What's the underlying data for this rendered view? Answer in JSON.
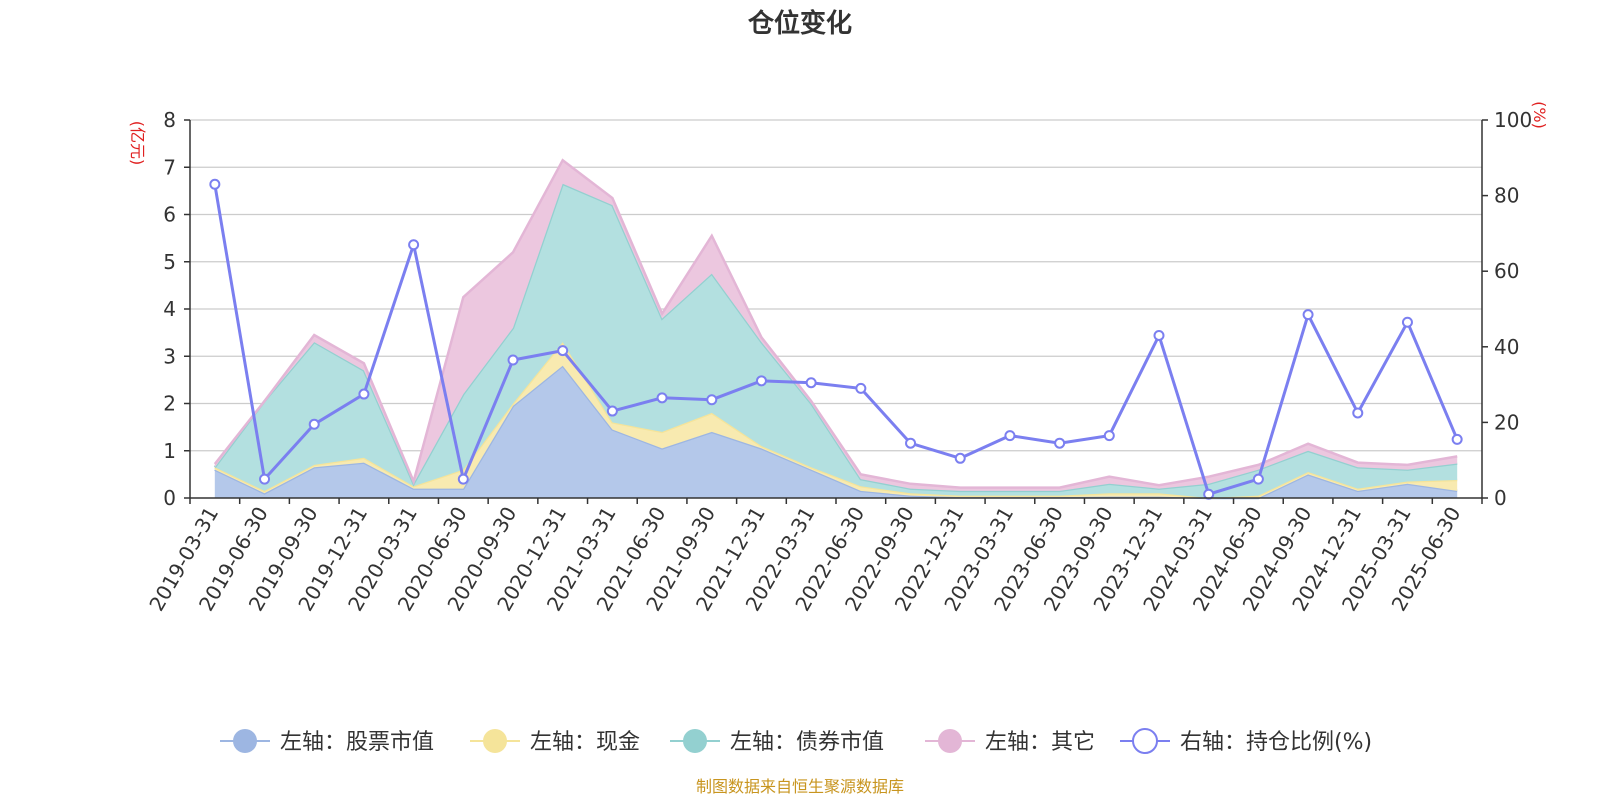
{
  "title": "仓位变化",
  "source": "制图数据来自恒生聚源数据库",
  "chart_data": {
    "type": "area",
    "categories": [
      "2019-03-31",
      "2019-06-30",
      "2019-09-30",
      "2019-12-31",
      "2020-03-31",
      "2020-06-30",
      "2020-09-30",
      "2020-12-31",
      "2021-03-31",
      "2021-06-30",
      "2021-09-30",
      "2021-12-31",
      "2022-03-31",
      "2022-06-30",
      "2022-09-30",
      "2022-12-31",
      "2023-03-31",
      "2023-06-30",
      "2023-09-30",
      "2023-12-31",
      "2024-03-31",
      "2024-06-30",
      "2024-09-30",
      "2024-12-31",
      "2025-03-31",
      "2025-06-30"
    ],
    "y_left": {
      "label": "(亿元)",
      "ylim": [
        0,
        8
      ],
      "ticks": [
        0,
        1,
        2,
        3,
        4,
        5,
        6,
        7,
        8
      ]
    },
    "y_right": {
      "label": "(%)",
      "ylim": [
        0,
        100
      ],
      "ticks": [
        0,
        20,
        40,
        60,
        80,
        100
      ]
    },
    "grid": true,
    "legend_position": "bottom",
    "series": [
      {
        "name": "左轴：股票市值",
        "axis": "left",
        "kind": "stacked-area",
        "color": "#9db6e2",
        "fill": "#b4c8ea",
        "values": [
          0.6,
          0.1,
          0.65,
          0.75,
          0.2,
          0.2,
          1.95,
          2.8,
          1.45,
          1.05,
          1.4,
          1.05,
          0.6,
          0.15,
          0.05,
          0.02,
          0.02,
          0.02,
          0.03,
          0.03,
          0.0,
          0.0,
          0.5,
          0.15,
          0.3,
          0.15
        ]
      },
      {
        "name": "左轴：现金",
        "axis": "left",
        "kind": "stacked-area",
        "color": "#f5e49a",
        "fill": "#f8eab0",
        "values": [
          0.05,
          0.05,
          0.05,
          0.1,
          0.05,
          0.4,
          0.05,
          0.5,
          0.15,
          0.35,
          0.4,
          0.05,
          0.05,
          0.1,
          0.05,
          0.03,
          0.03,
          0.03,
          0.07,
          0.07,
          0.0,
          0.05,
          0.05,
          0.05,
          0.05,
          0.23
        ]
      },
      {
        "name": "左轴：债券市值",
        "axis": "left",
        "kind": "stacked-area",
        "color": "#93d0d0",
        "fill": "#b3e0e0",
        "values": [
          0.0,
          1.9,
          2.6,
          1.85,
          0.05,
          1.6,
          1.6,
          3.35,
          4.6,
          2.4,
          2.95,
          2.2,
          1.35,
          0.15,
          0.1,
          0.1,
          0.1,
          0.1,
          0.2,
          0.1,
          0.3,
          0.55,
          0.45,
          0.45,
          0.25,
          0.35
        ]
      },
      {
        "name": "左轴：其它",
        "axis": "left",
        "kind": "stacked-area",
        "color": "#e3b6d6",
        "fill": "#ecc7df",
        "values": [
          0.07,
          0.0,
          0.15,
          0.15,
          0.05,
          2.05,
          1.6,
          0.5,
          0.15,
          0.1,
          0.8,
          0.1,
          0.05,
          0.1,
          0.1,
          0.07,
          0.07,
          0.07,
          0.15,
          0.07,
          0.15,
          0.1,
          0.15,
          0.1,
          0.1,
          0.15
        ]
      },
      {
        "name": "右轴：持仓比例(%)",
        "axis": "right",
        "kind": "line",
        "color": "#7b7ff0",
        "values": [
          83,
          5,
          19.5,
          27.5,
          67,
          5,
          36.5,
          39,
          23,
          26.5,
          26,
          31,
          30.5,
          29,
          14.5,
          10.5,
          16.5,
          14.5,
          16.5,
          43,
          1,
          5,
          48.5,
          22.5,
          46.5,
          15.5
        ]
      }
    ]
  }
}
